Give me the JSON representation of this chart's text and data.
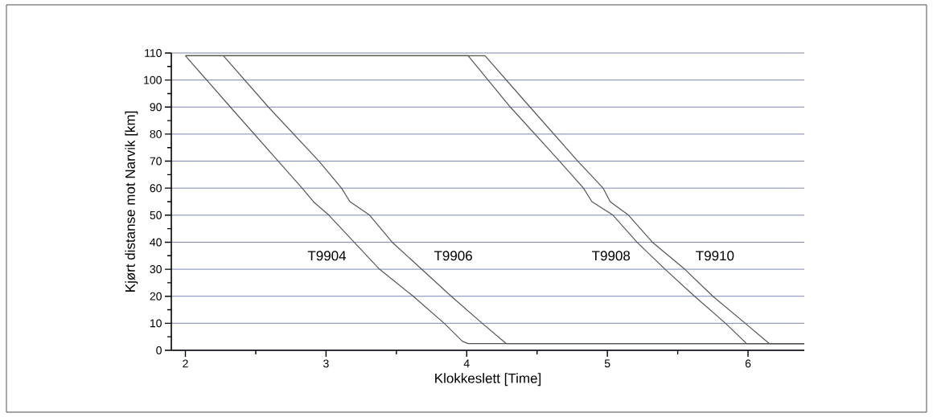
{
  "chart_data": {
    "type": "line",
    "xlabel": "Klokkeslett [Time]",
    "ylabel": "Kjørt distanse mot Narvik [km]",
    "xlim": [
      1.9,
      6.4
    ],
    "ylim": [
      0,
      110
    ],
    "xticks": [
      2,
      3,
      4,
      5,
      6
    ],
    "yticks": [
      0,
      10,
      20,
      30,
      40,
      50,
      60,
      70,
      80,
      90,
      100,
      110
    ],
    "grid": "y",
    "series": [
      {
        "name": "T9904",
        "color": "#555555",
        "x": [
          2.0,
          2.32,
          2.66,
          2.83,
          2.91,
          3.02,
          3.2,
          3.38,
          3.62,
          3.84,
          3.97,
          4.01,
          6.4
        ],
        "values": [
          109,
          90,
          70,
          60,
          55,
          50,
          40,
          30,
          20,
          10,
          3.3,
          2.5,
          2.5
        ]
      },
      {
        "name": "T9906",
        "color": "#555555",
        "x": [
          2.27,
          2.59,
          2.95,
          3.11,
          3.17,
          3.31,
          3.47,
          3.68,
          3.89,
          4.11,
          4.28,
          6.4
        ],
        "values": [
          109,
          90,
          70,
          60,
          55,
          50,
          40,
          30,
          20,
          10,
          2.5,
          2.5
        ]
      },
      {
        "name": "T9908",
        "color": "#555555",
        "x": [
          2.0,
          4.01,
          4.31,
          4.66,
          4.83,
          4.89,
          5.04,
          5.21,
          5.41,
          5.62,
          5.84,
          5.99,
          6.4
        ],
        "values": [
          109,
          109,
          90,
          70,
          60,
          55,
          50,
          40,
          30,
          20,
          10,
          2.5,
          2.5
        ]
      },
      {
        "name": "T9910",
        "color": "#555555",
        "x": [
          2.0,
          4.13,
          4.45,
          4.79,
          4.97,
          5.02,
          5.15,
          5.32,
          5.55,
          5.75,
          5.98,
          6.15,
          6.4
        ],
        "values": [
          109,
          109,
          90,
          70,
          60,
          55,
          50,
          40,
          30,
          20,
          10,
          2.5,
          2.5
        ]
      }
    ]
  }
}
